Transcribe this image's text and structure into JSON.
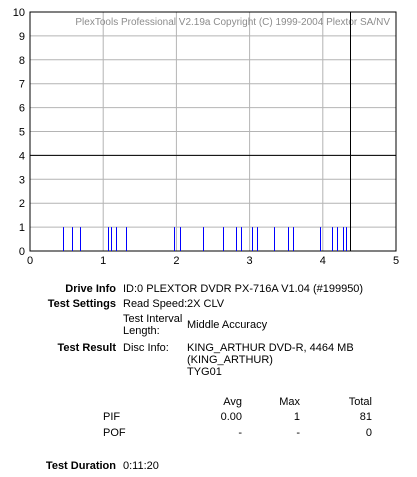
{
  "chart_data": {
    "type": "bar",
    "watermark": "PlexTools Professional V2.19a Copyright (C) 1999-2004 Plextor SA/NV",
    "xlim": [
      0,
      5
    ],
    "ylim": [
      0,
      10
    ],
    "x_ticks": [
      "0",
      "1",
      "2",
      "3",
      "4",
      "5"
    ],
    "y_ticks": [
      "0",
      "1",
      "2",
      "3",
      "4",
      "5",
      "6",
      "7",
      "8",
      "9",
      "10"
    ],
    "grid": true,
    "threshold_y": 4,
    "end_marker_x": 4.37,
    "series": [
      {
        "color": "#0000ff",
        "x": [
          0.45,
          0.57,
          0.68,
          1.07,
          1.11,
          1.18,
          1.31,
          1.97,
          2.05,
          2.36,
          2.63,
          2.82,
          2.88,
          3.03,
          3.1,
          3.33,
          3.53,
          3.59,
          3.96,
          4.12,
          4.2,
          4.27,
          4.32
        ],
        "values": [
          1,
          1,
          1,
          1,
          1,
          1,
          1,
          1,
          1,
          1,
          1,
          1,
          1,
          1,
          1,
          1,
          1,
          1,
          1,
          1,
          1,
          1,
          1
        ]
      }
    ]
  },
  "info": {
    "drive_info_label": "Drive Info",
    "drive_info_value": "ID:0 PLEXTOR DVDR PX-716A V1.04 (#199950)",
    "test_settings_label": "Test Settings",
    "read_speed_label": "Read Speed:",
    "read_speed_value": "2X CLV",
    "interval_label_line1": "Test Interval",
    "interval_label_line2": "Length:",
    "interval_value": "Middle Accuracy",
    "test_result_label": "Test Result",
    "disc_info_label": "Disc Info:",
    "disc_info_line1": "KING_ARTHUR DVD-R, 4464 MB",
    "disc_info_line2": "(KING_ARTHUR)",
    "disc_info_line3": "TYG01"
  },
  "results": {
    "headers": [
      "Avg",
      "Max",
      "Total"
    ],
    "rows": [
      {
        "name": "PIF",
        "avg": "0.00",
        "max": "1",
        "total": "81"
      },
      {
        "name": "POF",
        "avg": "-",
        "max": "-",
        "total": "0"
      }
    ]
  },
  "duration": {
    "label": "Test Duration",
    "value": "0:11:20"
  }
}
